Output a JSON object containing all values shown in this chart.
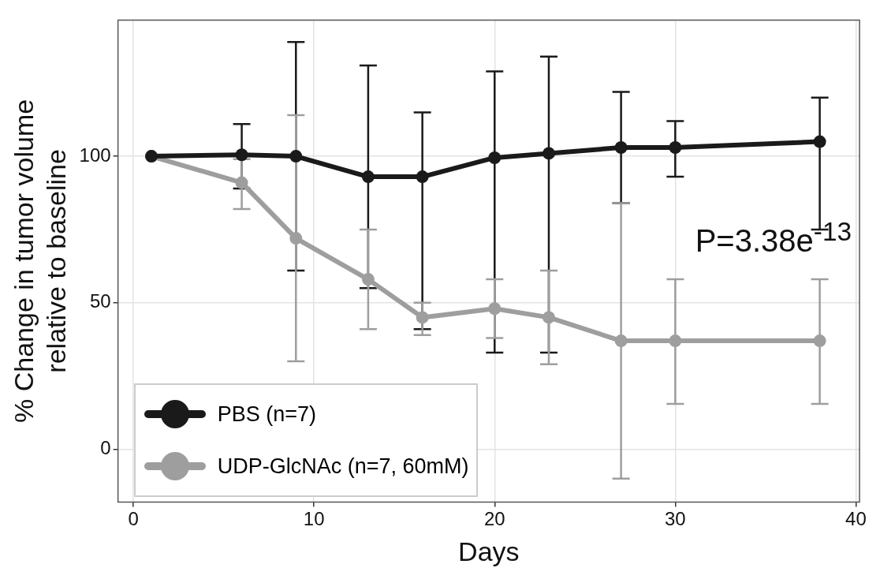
{
  "chart_data": {
    "type": "line",
    "xlabel": "Days",
    "ylabel": "% Change in tumor volume\nrelative to baseline",
    "x": [
      1,
      6,
      9,
      13,
      16,
      20,
      23,
      27,
      30,
      38
    ],
    "series": [
      {
        "name": "PBS (n=7)",
        "color": "#1a1a1a",
        "values": [
          100,
          100.5,
          100,
          93,
          93,
          99.5,
          101,
          103,
          103,
          105
        ],
        "errors": [
          null,
          [
            89,
            111
          ],
          [
            61,
            139
          ],
          [
            55,
            131
          ],
          [
            41,
            115
          ],
          [
            33,
            129
          ],
          [
            33,
            134
          ],
          [
            84,
            122
          ],
          [
            93,
            112
          ],
          [
            75,
            120
          ]
        ]
      },
      {
        "name": "UDP-GlcNAc (n=7, 60mM)",
        "color": "#9e9e9e",
        "values": [
          100,
          91,
          72,
          58,
          45,
          48,
          45,
          37,
          37,
          37
        ],
        "errors": [
          null,
          [
            82,
            99
          ],
          [
            30,
            114
          ],
          [
            41,
            75
          ],
          [
            39,
            50
          ],
          [
            38,
            58
          ],
          [
            29,
            61
          ],
          [
            -10,
            84
          ],
          [
            15.5,
            58
          ],
          [
            15.5,
            58
          ]
        ]
      }
    ],
    "xlim": [
      -0.85,
      40.2
    ],
    "xticks": [
      0,
      10,
      20,
      30,
      40
    ],
    "ylim": [
      -18,
      146.5
    ],
    "yticks": [
      0,
      50,
      100
    ],
    "grid": true,
    "legend": "bottom left",
    "marker": "circle",
    "line_style": "solid",
    "annotations": [
      "P=3.38e$^{-13}$"
    ]
  }
}
